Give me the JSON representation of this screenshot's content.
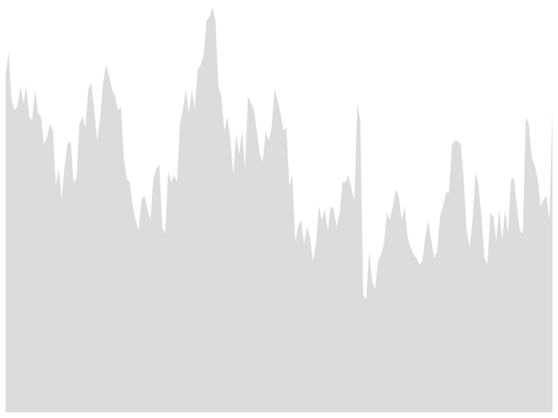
{
  "chart_data": {
    "type": "area",
    "title": "",
    "xlabel": "",
    "ylabel": "",
    "axes_visible": false,
    "grid": false,
    "legend": "none",
    "fill_color": "#dcdcdc",
    "ylim": [
      0,
      600
    ],
    "series": [
      {
        "values": [
          490,
          525,
          455,
          440,
          445,
          475,
          450,
          475,
          430,
          425,
          470,
          435,
          430,
          390,
          400,
          420,
          410,
          330,
          355,
          310,
          360,
          390,
          395,
          335,
          340,
          420,
          430,
          415,
          470,
          480,
          440,
          395,
          430,
          480,
          505,
          490,
          470,
          460,
          440,
          445,
          370,
          340,
          335,
          300,
          280,
          265,
          310,
          315,
          295,
          280,
          340,
          355,
          360,
          270,
          260,
          350,
          335,
          345,
          335,
          420,
          440,
          470,
          435,
          470,
          440,
          500,
          505,
          520,
          570,
          575,
          590,
          570,
          475,
          460,
          410,
          430,
          400,
          345,
          405,
          375,
          410,
          355,
          460,
          450,
          440,
          410,
          375,
          365,
          410,
          395,
          415,
          470,
          455,
          435,
          410,
          415,
          330,
          345,
          250,
          270,
          280,
          245,
          270,
          255,
          220,
          245,
          300,
          280,
          295,
          265,
          300,
          295,
          270,
          290,
          335,
          335,
          345,
          325,
          310,
          450,
          425,
          170,
          165,
          235,
          190,
          180,
          220,
          230,
          245,
          290,
          280,
          300,
          325,
          315,
          280,
          300,
          255,
          240,
          230,
          225,
          215,
          220,
          255,
          280,
          250,
          225,
          235,
          285,
          300,
          320,
          320,
          390,
          395,
          395,
          390,
          340,
          265,
          240,
          280,
          350,
          330,
          285,
          225,
          215,
          290,
          285,
          250,
          295,
          250,
          295,
          260,
          340,
          340,
          300,
          265,
          260,
          430,
          420,
          370,
          360,
          340,
          300,
          310,
          315,
          280,
          440
        ]
      }
    ]
  }
}
